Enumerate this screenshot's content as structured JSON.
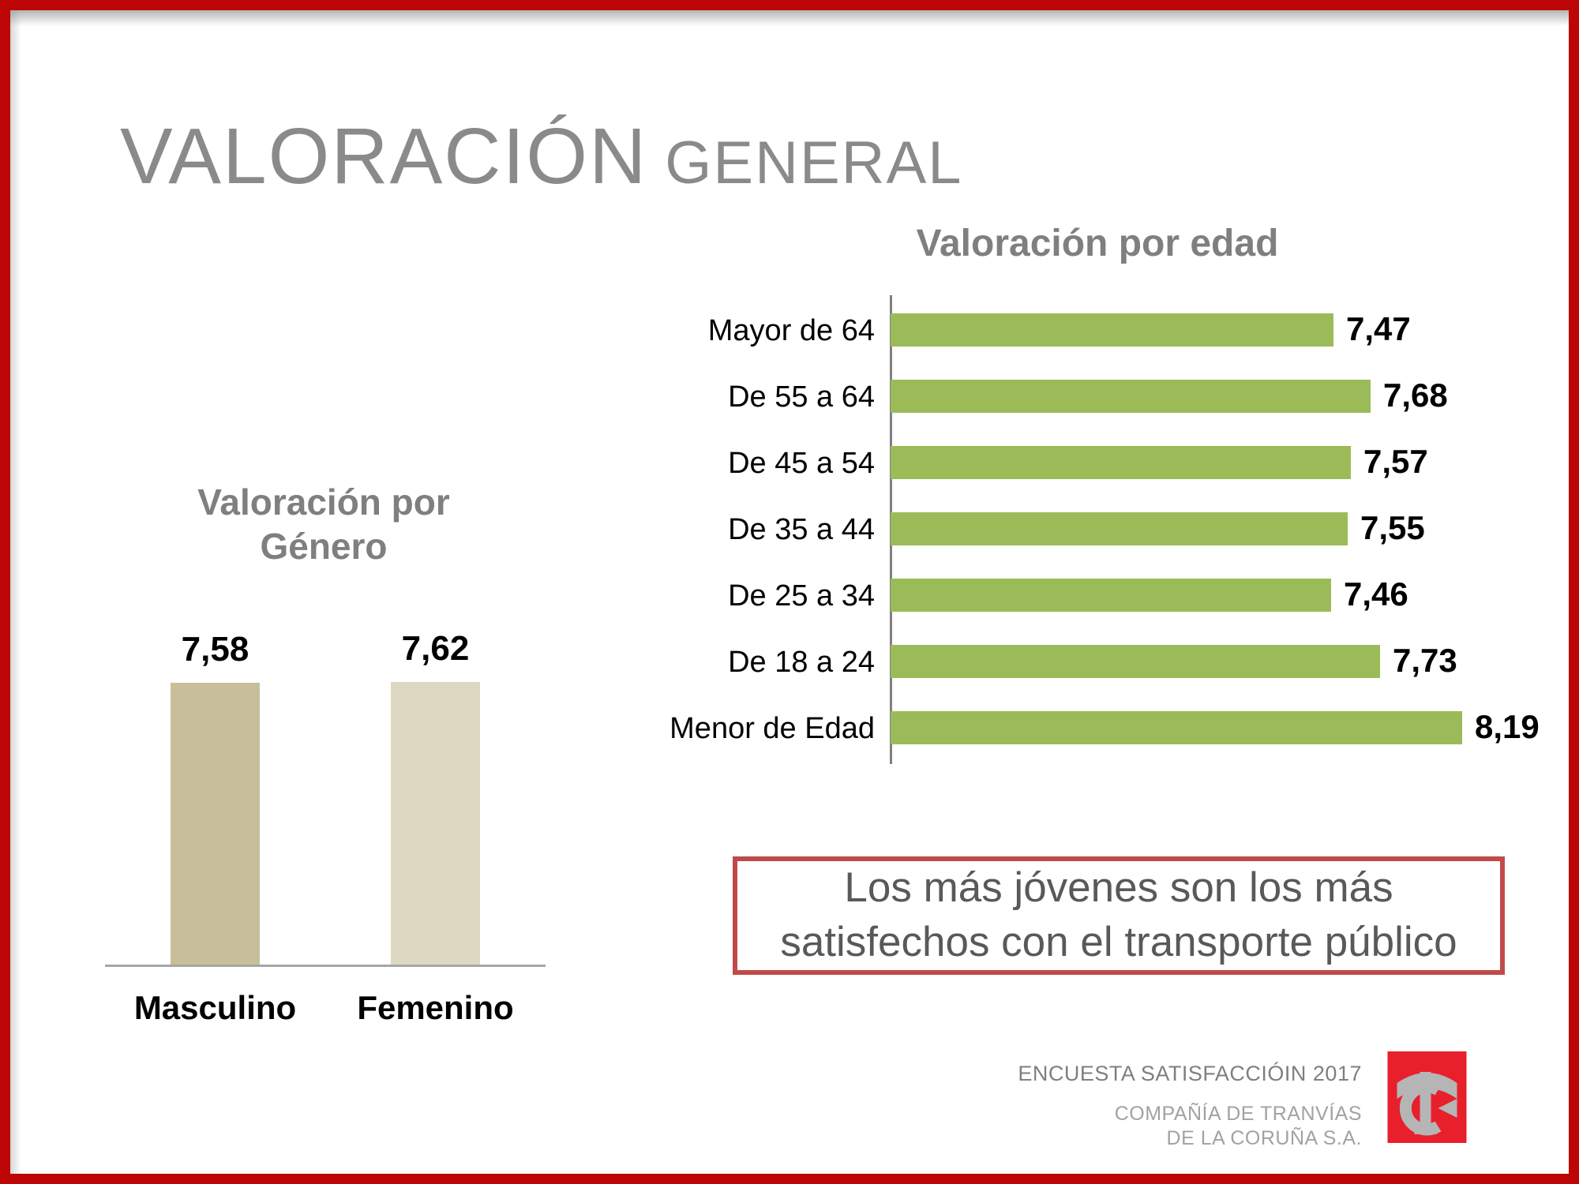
{
  "title": {
    "main": "VALORACIÓN",
    "sub": "GENERAL"
  },
  "colors": {
    "frame_red": "#BC0505",
    "age_bar_green": "#9BBB59",
    "gender_bar_masculino": "#C6BF99",
    "gender_bar_femenino": "#DDD8C2",
    "title_gray": "#8A8A8A",
    "chart_title_gray": "#7F7F7F",
    "conclusion_border_red": "#C04A4A",
    "conclusion_text_gray": "#595959",
    "logo_red": "#E8202C",
    "logo_gray": "#B5B5B5"
  },
  "chart_data": [
    {
      "type": "bar",
      "orientation": "vertical",
      "title": "Valoración por Género",
      "title_lines": [
        "Valoración por",
        "Género"
      ],
      "categories": [
        "Masculino",
        "Femenino"
      ],
      "values": [
        7.58,
        7.62
      ],
      "value_labels": [
        "7,58",
        "7,62"
      ],
      "bar_colors": [
        "#C6BF99",
        "#DDD8C2"
      ],
      "ylim": [
        0,
        8
      ],
      "grid": "off",
      "legend": "none",
      "xlabel": "",
      "ylabel": ""
    },
    {
      "type": "bar",
      "orientation": "horizontal",
      "title": "Valoración por edad",
      "categories": [
        "Mayor de 64",
        "De 55 a 64",
        "De 45 a 54",
        "De 35 a 44",
        "De 25 a 34",
        "De 18 a 24",
        "Menor de Edad"
      ],
      "values": [
        7.47,
        7.68,
        7.57,
        7.55,
        7.46,
        7.73,
        8.19
      ],
      "value_labels": [
        "7,47",
        "7,68",
        "7,57",
        "7,55",
        "7,46",
        "7,73",
        "8,19"
      ],
      "bar_color": "#9BBB59",
      "xlim": [
        5,
        8.5
      ],
      "grid": "off",
      "legend": "none",
      "xlabel": "",
      "ylabel": ""
    }
  ],
  "conclusion": {
    "line1": "Los más jóvenes son los más",
    "line2": "satisfechos con el transporte público"
  },
  "footer": {
    "survey": "ENCUESTA SATISFACCIÓIN 2017",
    "company_line1": "COMPAÑÍA DE TRANVÍAS",
    "company_line2": "DE LA CORUÑA S.A."
  },
  "logo": {
    "monogram": "TC"
  }
}
